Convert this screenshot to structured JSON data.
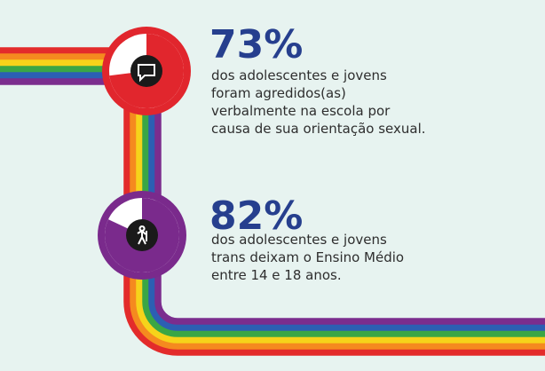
{
  "stats": [
    {
      "value": 73,
      "value_label": "73%",
      "lines": [
        "dos adolescentes e jovens",
        "foram agredidos(as)",
        "verbalmente na escola por",
        "causa de sua orientação sexual."
      ],
      "color": "#e1262d"
    },
    {
      "value": 82,
      "value_label": "82%",
      "lines": [
        "dos adolescentes e jovens",
        "trans deixam o Ensino Médio",
        "entre 14 e 18 anos."
      ],
      "color": "#7a2a8c"
    }
  ]
}
